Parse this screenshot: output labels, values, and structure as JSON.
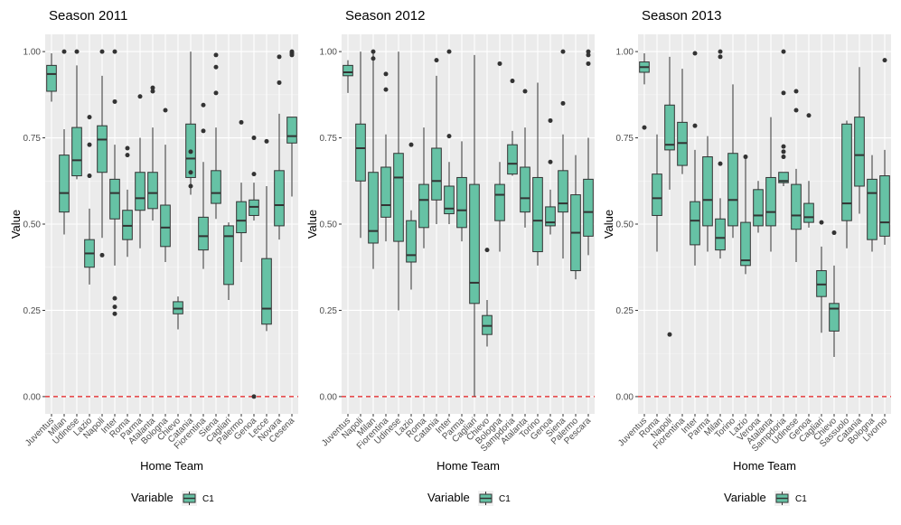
{
  "chart_data": [
    {
      "type": "boxplot",
      "title": "Season 2011",
      "xlabel": "Home Team",
      "ylabel": "Value",
      "ylim": [
        -0.05,
        1.05
      ],
      "yticks": [
        "0.00",
        "0.25",
        "0.50",
        "0.75",
        "1.00"
      ],
      "reference_line": {
        "y": 0,
        "color": "#e41a1c",
        "style": "dashed"
      },
      "categories": [
        "Juventus",
        "Milan",
        "Udinese",
        "Lazio",
        "Napoli",
        "Inter",
        "Roma",
        "Parma",
        "Atalanta",
        "Bologna",
        "Chievo",
        "Catania",
        "Fiorentina",
        "Siena",
        "Cagliari",
        "Palermo",
        "Genoa",
        "Lecce",
        "Novara",
        "Cesena"
      ],
      "boxes": [
        {
          "lw": 0.855,
          "q1": 0.885,
          "med": 0.935,
          "q3": 0.96,
          "uw": 0.995,
          "out": []
        },
        {
          "lw": 0.47,
          "q1": 0.535,
          "med": 0.59,
          "q3": 0.7,
          "uw": 0.775,
          "out": [
            1.0
          ]
        },
        {
          "lw": 0.63,
          "q1": 0.64,
          "med": 0.685,
          "q3": 0.78,
          "uw": 0.96,
          "out": [
            1.0
          ]
        },
        {
          "lw": 0.325,
          "q1": 0.375,
          "med": 0.415,
          "q3": 0.455,
          "uw": 0.545,
          "out": [
            0.81,
            0.73,
            0.64
          ]
        },
        {
          "lw": 0.46,
          "q1": 0.65,
          "med": 0.745,
          "q3": 0.785,
          "uw": 0.93,
          "out": [
            1.0,
            0.41
          ]
        },
        {
          "lw": 0.38,
          "q1": 0.515,
          "med": 0.59,
          "q3": 0.63,
          "uw": 0.73,
          "out": [
            1.0,
            0.855,
            0.285,
            0.26,
            0.24
          ]
        },
        {
          "lw": 0.405,
          "q1": 0.455,
          "med": 0.495,
          "q3": 0.54,
          "uw": 0.6,
          "out": [
            0.72,
            0.7
          ]
        },
        {
          "lw": 0.43,
          "q1": 0.54,
          "med": 0.575,
          "q3": 0.65,
          "uw": 0.75,
          "out": [
            0.87
          ]
        },
        {
          "lw": 0.51,
          "q1": 0.545,
          "med": 0.59,
          "q3": 0.65,
          "uw": 0.78,
          "out": [
            0.895,
            0.885
          ]
        },
        {
          "lw": 0.39,
          "q1": 0.435,
          "med": 0.49,
          "q3": 0.555,
          "uw": 0.73,
          "out": [
            0.83
          ]
        },
        {
          "lw": 0.195,
          "q1": 0.24,
          "med": 0.255,
          "q3": 0.275,
          "uw": 0.29,
          "out": []
        },
        {
          "lw": 0.585,
          "q1": 0.635,
          "med": 0.69,
          "q3": 0.79,
          "uw": 1.0,
          "out": [
            0.71,
            0.65,
            0.61
          ]
        },
        {
          "lw": 0.37,
          "q1": 0.425,
          "med": 0.465,
          "q3": 0.52,
          "uw": 0.68,
          "out": [
            0.845,
            0.77
          ]
        },
        {
          "lw": 0.515,
          "q1": 0.56,
          "med": 0.59,
          "q3": 0.655,
          "uw": 0.78,
          "out": [
            0.99,
            0.955,
            0.88
          ]
        },
        {
          "lw": 0.28,
          "q1": 0.325,
          "med": 0.465,
          "q3": 0.495,
          "uw": 0.505,
          "out": []
        },
        {
          "lw": 0.39,
          "q1": 0.475,
          "med": 0.51,
          "q3": 0.565,
          "uw": 0.62,
          "out": [
            0.795
          ]
        },
        {
          "lw": 0.51,
          "q1": 0.525,
          "med": 0.55,
          "q3": 0.57,
          "uw": 0.62,
          "out": [
            0.75,
            0.645,
            0.0
          ]
        },
        {
          "lw": 0.19,
          "q1": 0.21,
          "med": 0.255,
          "q3": 0.4,
          "uw": 0.61,
          "out": [
            0.74
          ]
        },
        {
          "lw": 0.455,
          "q1": 0.495,
          "med": 0.555,
          "q3": 0.655,
          "uw": 0.82,
          "out": [
            0.985,
            0.91
          ]
        },
        {
          "lw": 0.58,
          "q1": 0.735,
          "med": 0.755,
          "q3": 0.81,
          "uw": 0.81,
          "out": [
            1.0,
            0.995,
            0.99
          ]
        }
      ]
    },
    {
      "type": "boxplot",
      "title": "Season 2012",
      "xlabel": "Home Team",
      "ylabel": "Value",
      "ylim": [
        -0.05,
        1.05
      ],
      "yticks": [
        "0.00",
        "0.25",
        "0.50",
        "0.75",
        "1.00"
      ],
      "reference_line": {
        "y": 0,
        "color": "#e41a1c",
        "style": "dashed"
      },
      "categories": [
        "Juventus",
        "Napoli",
        "Milan",
        "Fiorentina",
        "Udinese",
        "Lazio",
        "Roma",
        "Catania",
        "Inter",
        "Parma",
        "Cagliari",
        "Chievo",
        "Bologna",
        "Sampdoria",
        "Atalanta",
        "Torino",
        "Genoa",
        "Siena",
        "Palermo",
        "Pescara"
      ],
      "boxes": [
        {
          "lw": 0.88,
          "q1": 0.93,
          "med": 0.94,
          "q3": 0.96,
          "uw": 0.975,
          "out": []
        },
        {
          "lw": 0.46,
          "q1": 0.625,
          "med": 0.72,
          "q3": 0.79,
          "uw": 1.0,
          "out": []
        },
        {
          "lw": 0.37,
          "q1": 0.445,
          "med": 0.48,
          "q3": 0.65,
          "uw": 0.995,
          "out": [
            1.0,
            0.98
          ]
        },
        {
          "lw": 0.45,
          "q1": 0.52,
          "med": 0.555,
          "q3": 0.665,
          "uw": 0.76,
          "out": [
            0.935,
            0.89
          ]
        },
        {
          "lw": 0.25,
          "q1": 0.45,
          "med": 0.635,
          "q3": 0.705,
          "uw": 1.0,
          "out": []
        },
        {
          "lw": 0.31,
          "q1": 0.39,
          "med": 0.41,
          "q3": 0.51,
          "uw": 0.54,
          "out": [
            0.73
          ]
        },
        {
          "lw": 0.43,
          "q1": 0.49,
          "med": 0.57,
          "q3": 0.615,
          "uw": 0.78,
          "out": []
        },
        {
          "lw": 0.5,
          "q1": 0.57,
          "med": 0.625,
          "q3": 0.72,
          "uw": 0.93,
          "out": [
            0.975
          ]
        },
        {
          "lw": 0.5,
          "q1": 0.53,
          "med": 0.545,
          "q3": 0.61,
          "uw": 0.68,
          "out": [
            1.0,
            0.755
          ]
        },
        {
          "lw": 0.45,
          "q1": 0.49,
          "med": 0.54,
          "q3": 0.635,
          "uw": 0.74,
          "out": []
        },
        {
          "lw": 0.0,
          "q1": 0.27,
          "med": 0.33,
          "q3": 0.615,
          "uw": 0.99,
          "out": []
        },
        {
          "lw": 0.145,
          "q1": 0.18,
          "med": 0.205,
          "q3": 0.235,
          "uw": 0.28,
          "out": [
            0.425
          ]
        },
        {
          "lw": 0.42,
          "q1": 0.51,
          "med": 0.585,
          "q3": 0.615,
          "uw": 0.68,
          "out": [
            0.965
          ]
        },
        {
          "lw": 0.64,
          "q1": 0.645,
          "med": 0.675,
          "q3": 0.73,
          "uw": 0.77,
          "out": [
            0.915
          ]
        },
        {
          "lw": 0.49,
          "q1": 0.535,
          "med": 0.575,
          "q3": 0.665,
          "uw": 0.78,
          "out": [
            0.885
          ]
        },
        {
          "lw": 0.38,
          "q1": 0.42,
          "med": 0.51,
          "q3": 0.635,
          "uw": 0.91,
          "out": []
        },
        {
          "lw": 0.47,
          "q1": 0.495,
          "med": 0.505,
          "q3": 0.55,
          "uw": 0.6,
          "out": [
            0.8,
            0.68
          ]
        },
        {
          "lw": 0.4,
          "q1": 0.535,
          "med": 0.56,
          "q3": 0.655,
          "uw": 0.76,
          "out": [
            1.0,
            0.85
          ]
        },
        {
          "lw": 0.34,
          "q1": 0.365,
          "med": 0.475,
          "q3": 0.585,
          "uw": 0.7,
          "out": []
        },
        {
          "lw": 0.41,
          "q1": 0.465,
          "med": 0.535,
          "q3": 0.63,
          "uw": 0.75,
          "out": [
            1.0,
            0.99,
            0.965
          ]
        }
      ]
    },
    {
      "type": "boxplot",
      "title": "Season 2013",
      "xlabel": "Home Team",
      "ylabel": "Value",
      "ylim": [
        -0.05,
        1.05
      ],
      "yticks": [
        "0.00",
        "0.25",
        "0.50",
        "0.75",
        "1.00"
      ],
      "reference_line": {
        "y": 0,
        "color": "#e41a1c",
        "style": "dashed"
      },
      "categories": [
        "Juventus",
        "Roma",
        "Napoli",
        "Fiorentina",
        "Inter",
        "Parma",
        "Milan",
        "Torino",
        "Lazio",
        "Verona",
        "Atalanta",
        "Sampdoria",
        "Udinese",
        "Genoa",
        "Cagliari",
        "Chievo",
        "Sassuolo",
        "Catania",
        "Bologna",
        "Livorno"
      ],
      "boxes": [
        {
          "lw": 0.905,
          "q1": 0.94,
          "med": 0.955,
          "q3": 0.97,
          "uw": 0.995,
          "out": [
            0.78
          ]
        },
        {
          "lw": 0.42,
          "q1": 0.525,
          "med": 0.575,
          "q3": 0.645,
          "uw": 0.76,
          "out": []
        },
        {
          "lw": 0.6,
          "q1": 0.715,
          "med": 0.73,
          "q3": 0.845,
          "uw": 0.985,
          "out": [
            0.18
          ]
        },
        {
          "lw": 0.645,
          "q1": 0.67,
          "med": 0.735,
          "q3": 0.795,
          "uw": 0.95,
          "out": []
        },
        {
          "lw": 0.38,
          "q1": 0.44,
          "med": 0.51,
          "q3": 0.565,
          "uw": 0.715,
          "out": [
            0.995,
            0.785
          ]
        },
        {
          "lw": 0.42,
          "q1": 0.495,
          "med": 0.57,
          "q3": 0.695,
          "uw": 0.755,
          "out": []
        },
        {
          "lw": 0.4,
          "q1": 0.425,
          "med": 0.46,
          "q3": 0.515,
          "uw": 0.575,
          "out": [
            1.0,
            0.985,
            0.675
          ]
        },
        {
          "lw": 0.46,
          "q1": 0.495,
          "med": 0.57,
          "q3": 0.705,
          "uw": 0.905,
          "out": []
        },
        {
          "lw": 0.355,
          "q1": 0.38,
          "med": 0.395,
          "q3": 0.505,
          "uw": 0.695,
          "out": [
            0.695
          ]
        },
        {
          "lw": 0.475,
          "q1": 0.495,
          "med": 0.525,
          "q3": 0.6,
          "uw": 0.625,
          "out": []
        },
        {
          "lw": 0.42,
          "q1": 0.495,
          "med": 0.535,
          "q3": 0.635,
          "uw": 0.81,
          "out": []
        },
        {
          "lw": 0.61,
          "q1": 0.62,
          "med": 0.625,
          "q3": 0.65,
          "uw": 0.65,
          "out": [
            1.0,
            0.88,
            0.725,
            0.71,
            0.695
          ]
        },
        {
          "lw": 0.39,
          "q1": 0.485,
          "med": 0.525,
          "q3": 0.615,
          "uw": 0.66,
          "out": [
            0.885,
            0.83
          ]
        },
        {
          "lw": 0.49,
          "q1": 0.505,
          "med": 0.52,
          "q3": 0.56,
          "uw": 0.625,
          "out": [
            0.815
          ]
        },
        {
          "lw": 0.185,
          "q1": 0.29,
          "med": 0.325,
          "q3": 0.365,
          "uw": 0.435,
          "out": [
            0.505
          ]
        },
        {
          "lw": 0.115,
          "q1": 0.19,
          "med": 0.255,
          "q3": 0.27,
          "uw": 0.38,
          "out": [
            0.475
          ]
        },
        {
          "lw": 0.43,
          "q1": 0.51,
          "med": 0.56,
          "q3": 0.79,
          "uw": 0.8,
          "out": []
        },
        {
          "lw": 0.53,
          "q1": 0.61,
          "med": 0.7,
          "q3": 0.81,
          "uw": 0.955,
          "out": []
        },
        {
          "lw": 0.42,
          "q1": 0.455,
          "med": 0.59,
          "q3": 0.63,
          "uw": 0.7,
          "out": []
        },
        {
          "lw": 0.44,
          "q1": 0.465,
          "med": 0.505,
          "q3": 0.64,
          "uw": 0.715,
          "out": [
            0.975
          ]
        }
      ]
    }
  ],
  "legend": {
    "title": "Variable",
    "label": "C1",
    "fill_color": "#66c2a5",
    "line_color": "#333333"
  },
  "style": {
    "panel_background": "#ebebeb",
    "grid_major": "#ffffff",
    "box_fill": "#66c2a5",
    "box_line": "#333333",
    "outlier": "#333333"
  }
}
